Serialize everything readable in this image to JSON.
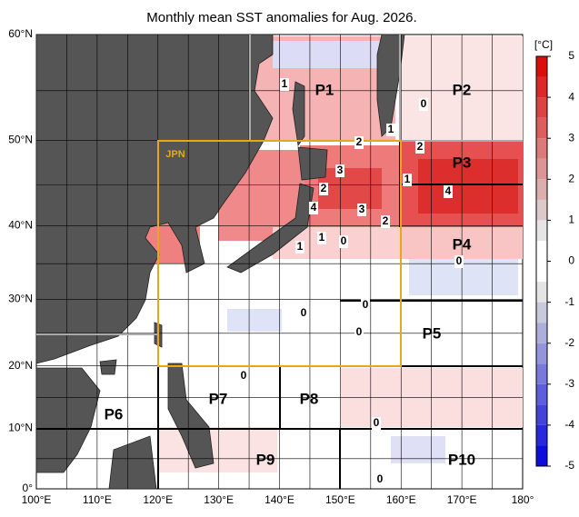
{
  "title": "Monthly mean SST anomalies for Aug. 2026.",
  "colorbar": {
    "unit": "[°C]",
    "ylim": [
      -5,
      5
    ],
    "yticks": [
      -5,
      -4,
      -3,
      -2,
      -1,
      0,
      1,
      2,
      3,
      4,
      5
    ]
  },
  "lat_labels": [
    "0°",
    "10°N",
    "20°N",
    "30°N",
    "40°N",
    "50°N",
    "60°N"
  ],
  "lon_labels": [
    "100°E",
    "110°E",
    "120°E",
    "130°E",
    "140°E",
    "150°E",
    "160°E",
    "170°E",
    "180°"
  ],
  "regions": [
    "P1",
    "P2",
    "P3",
    "P4",
    "P5",
    "P6",
    "P7",
    "P8",
    "P9",
    "P10"
  ],
  "jpn_label": "JPN",
  "contour_labels": [
    "1",
    "1",
    "0",
    "2",
    "2",
    "3",
    "1",
    "2",
    "4",
    "3",
    "4",
    "2",
    "1",
    "1",
    "0",
    "0",
    "0",
    "0",
    "0",
    "0",
    "0",
    "0"
  ]
}
